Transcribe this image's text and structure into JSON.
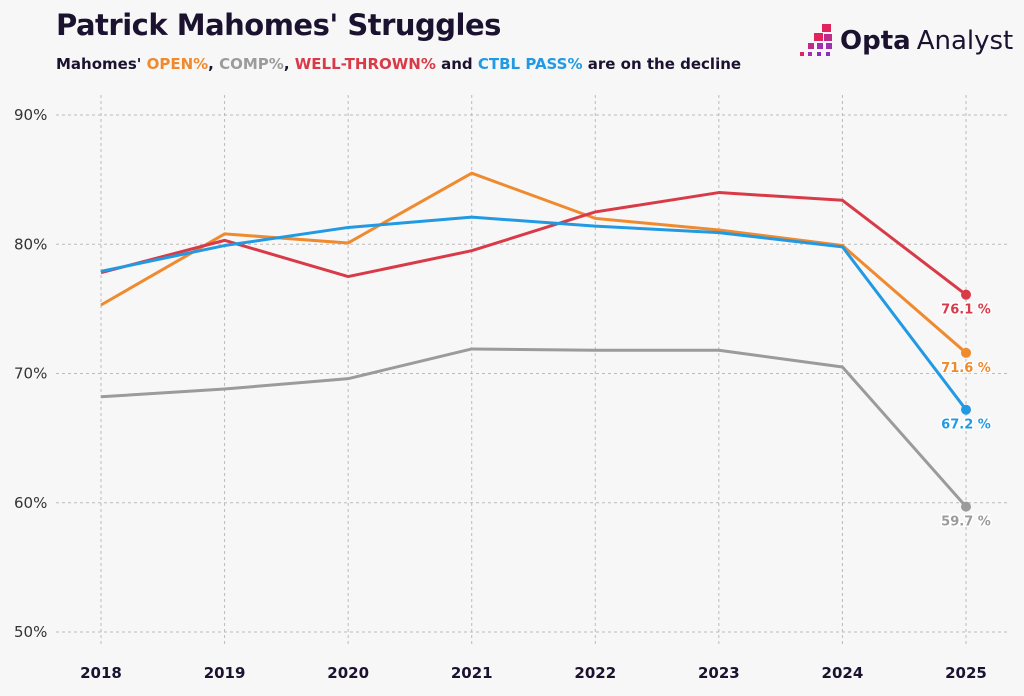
{
  "title": "Patrick Mahomes' Struggles",
  "subtitle": {
    "prefix": "Mahomes' ",
    "open": "OPEN%",
    "sep1": ", ",
    "comp": "COMP%",
    "sep2": ", ",
    "well": "WELL-THROWN%",
    "mid": " and ",
    "ctbl": "CTBL PASS%",
    "suffix": " are on the decline"
  },
  "logo": {
    "word1": "Opta",
    "word2": "Analyst"
  },
  "chart_data": {
    "type": "line",
    "x": [
      "2018",
      "2019",
      "2020",
      "2021",
      "2022",
      "2023",
      "2024",
      "2025"
    ],
    "ylim": [
      50,
      90
    ],
    "yticks": [
      "50%",
      "60%",
      "70%",
      "80%",
      "90%"
    ],
    "ytick_values": [
      50,
      60,
      70,
      80,
      90
    ],
    "grid": true,
    "series": [
      {
        "name": "OPEN%",
        "color": "#ef8a2e",
        "values": [
          75.3,
          80.8,
          80.1,
          85.5,
          82.0,
          81.1,
          79.9,
          71.6
        ],
        "end_label": "71.6 %"
      },
      {
        "name": "COMP%",
        "color": "#9b9b9b",
        "values": [
          68.2,
          68.8,
          69.6,
          71.9,
          71.8,
          71.8,
          70.5,
          59.7
        ],
        "end_label": "59.7 %"
      },
      {
        "name": "WELL-THROWN%",
        "color": "#d93a48",
        "values": [
          77.8,
          80.3,
          77.5,
          79.5,
          82.5,
          84.0,
          83.4,
          76.1
        ],
        "end_label": "76.1 %"
      },
      {
        "name": "CTBL PASS%",
        "color": "#229ae3",
        "values": [
          77.9,
          79.9,
          81.3,
          82.1,
          81.4,
          80.9,
          79.8,
          67.2
        ],
        "end_label": "67.2 %"
      }
    ]
  }
}
